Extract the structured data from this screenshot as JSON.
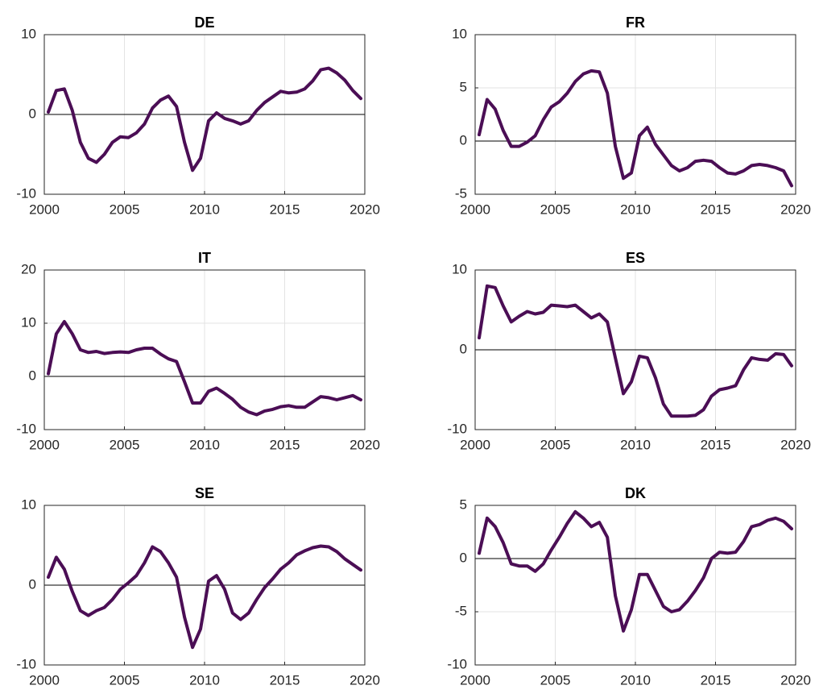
{
  "chart_data": [
    {
      "type": "line",
      "title": "DE",
      "color": "#4b0e55",
      "grid": true,
      "hline": 0,
      "xlim": [
        2000,
        2020
      ],
      "xticks": [
        2000,
        2005,
        2010,
        2015,
        2020
      ],
      "ylim": [
        -10,
        10
      ],
      "yticks": [
        -10,
        0,
        10
      ],
      "x": [
        2000.25,
        2000.75,
        2001.25,
        2001.75,
        2002.25,
        2002.75,
        2003.25,
        2003.75,
        2004.25,
        2004.75,
        2005.25,
        2005.75,
        2006.25,
        2006.75,
        2007.25,
        2007.75,
        2008.25,
        2008.75,
        2009.25,
        2009.75,
        2010.25,
        2010.75,
        2011.25,
        2011.75,
        2012.25,
        2012.75,
        2013.25,
        2013.75,
        2014.25,
        2014.75,
        2015.25,
        2015.75,
        2016.25,
        2016.75,
        2017.25,
        2017.75,
        2018.25,
        2018.75,
        2019.25,
        2019.75
      ],
      "values": [
        0.3,
        3.0,
        3.2,
        0.5,
        -3.5,
        -5.5,
        -6.0,
        -5.0,
        -3.5,
        -2.8,
        -2.9,
        -2.3,
        -1.2,
        0.8,
        1.8,
        2.3,
        1.0,
        -3.5,
        -7.0,
        -5.5,
        -0.8,
        0.2,
        -0.5,
        -0.8,
        -1.2,
        -0.8,
        0.5,
        1.5,
        2.2,
        2.9,
        2.7,
        2.8,
        3.2,
        4.2,
        5.6,
        5.8,
        5.2,
        4.3,
        3.0,
        2.0
      ]
    },
    {
      "type": "line",
      "title": "FR",
      "color": "#4b0e55",
      "grid": true,
      "hline": 0,
      "xlim": [
        2000,
        2020
      ],
      "xticks": [
        2000,
        2005,
        2010,
        2015,
        2020
      ],
      "ylim": [
        -5,
        10
      ],
      "yticks": [
        -5,
        0,
        5,
        10
      ],
      "x": [
        2000.25,
        2000.75,
        2001.25,
        2001.75,
        2002.25,
        2002.75,
        2003.25,
        2003.75,
        2004.25,
        2004.75,
        2005.25,
        2005.75,
        2006.25,
        2006.75,
        2007.25,
        2007.75,
        2008.25,
        2008.75,
        2009.25,
        2009.75,
        2010.25,
        2010.75,
        2011.25,
        2011.75,
        2012.25,
        2012.75,
        2013.25,
        2013.75,
        2014.25,
        2014.75,
        2015.25,
        2015.75,
        2016.25,
        2016.75,
        2017.25,
        2017.75,
        2018.25,
        2018.75,
        2019.25,
        2019.75
      ],
      "values": [
        0.6,
        3.9,
        3.0,
        1.0,
        -0.5,
        -0.5,
        -0.1,
        0.5,
        2.0,
        3.2,
        3.7,
        4.5,
        5.6,
        6.3,
        6.6,
        6.5,
        4.5,
        -0.5,
        -3.5,
        -3.0,
        0.5,
        1.3,
        -0.3,
        -1.3,
        -2.3,
        -2.8,
        -2.5,
        -1.9,
        -1.8,
        -1.9,
        -2.5,
        -3.0,
        -3.1,
        -2.8,
        -2.3,
        -2.2,
        -2.3,
        -2.5,
        -2.8,
        -4.2
      ]
    },
    {
      "type": "line",
      "title": "IT",
      "color": "#4b0e55",
      "grid": true,
      "hline": 0,
      "xlim": [
        2000,
        2020
      ],
      "xticks": [
        2000,
        2005,
        2010,
        2015,
        2020
      ],
      "ylim": [
        -10,
        20
      ],
      "yticks": [
        -10,
        0,
        10,
        20
      ],
      "x": [
        2000.25,
        2000.75,
        2001.25,
        2001.75,
        2002.25,
        2002.75,
        2003.25,
        2003.75,
        2004.25,
        2004.75,
        2005.25,
        2005.75,
        2006.25,
        2006.75,
        2007.25,
        2007.75,
        2008.25,
        2008.75,
        2009.25,
        2009.75,
        2010.25,
        2010.75,
        2011.25,
        2011.75,
        2012.25,
        2012.75,
        2013.25,
        2013.75,
        2014.25,
        2014.75,
        2015.25,
        2015.75,
        2016.25,
        2016.75,
        2017.25,
        2017.75,
        2018.25,
        2018.75,
        2019.25,
        2019.75
      ],
      "values": [
        0.5,
        8,
        10.3,
        8,
        5,
        4.5,
        4.7,
        4.3,
        4.5,
        4.6,
        4.5,
        5.0,
        5.3,
        5.3,
        4.2,
        3.3,
        2.8,
        -1.0,
        -5.0,
        -5.0,
        -2.8,
        -2.2,
        -3.2,
        -4.3,
        -5.8,
        -6.7,
        -7.2,
        -6.5,
        -6.2,
        -5.7,
        -5.5,
        -5.8,
        -5.8,
        -4.8,
        -3.8,
        -4.0,
        -4.4,
        -4.0,
        -3.6,
        -4.4
      ]
    },
    {
      "type": "line",
      "title": "ES",
      "color": "#4b0e55",
      "grid": true,
      "hline": 0,
      "xlim": [
        2000,
        2020
      ],
      "xticks": [
        2000,
        2005,
        2010,
        2015,
        2020
      ],
      "ylim": [
        -10,
        10
      ],
      "yticks": [
        -10,
        0,
        10
      ],
      "x": [
        2000.25,
        2000.75,
        2001.25,
        2001.75,
        2002.25,
        2002.75,
        2003.25,
        2003.75,
        2004.25,
        2004.75,
        2005.25,
        2005.75,
        2006.25,
        2006.75,
        2007.25,
        2007.75,
        2008.25,
        2008.75,
        2009.25,
        2009.75,
        2010.25,
        2010.75,
        2011.25,
        2011.75,
        2012.25,
        2012.75,
        2013.25,
        2013.75,
        2014.25,
        2014.75,
        2015.25,
        2015.75,
        2016.25,
        2016.75,
        2017.25,
        2017.75,
        2018.25,
        2018.75,
        2019.25,
        2019.75
      ],
      "values": [
        1.5,
        8,
        7.8,
        5.5,
        3.5,
        4.2,
        4.8,
        4.5,
        4.7,
        5.6,
        5.5,
        5.4,
        5.6,
        4.8,
        4.0,
        4.5,
        3.5,
        -1.0,
        -5.5,
        -4.0,
        -0.8,
        -1.0,
        -3.5,
        -6.8,
        -8.3,
        -8.3,
        -8.3,
        -8.2,
        -7.5,
        -5.8,
        -5.0,
        -4.8,
        -4.5,
        -2.5,
        -1.0,
        -1.2,
        -1.3,
        -0.5,
        -0.6,
        -2.0
      ]
    },
    {
      "type": "line",
      "title": "SE",
      "color": "#4b0e55",
      "grid": true,
      "hline": 0,
      "xlim": [
        2000,
        2020
      ],
      "xticks": [
        2000,
        2005,
        2010,
        2015,
        2020
      ],
      "ylim": [
        -10,
        10
      ],
      "yticks": [
        -10,
        0,
        10
      ],
      "x": [
        2000.25,
        2000.75,
        2001.25,
        2001.75,
        2002.25,
        2002.75,
        2003.25,
        2003.75,
        2004.25,
        2004.75,
        2005.25,
        2005.75,
        2006.25,
        2006.75,
        2007.25,
        2007.75,
        2008.25,
        2008.75,
        2009.25,
        2009.75,
        2010.25,
        2010.75,
        2011.25,
        2011.75,
        2012.25,
        2012.75,
        2013.25,
        2013.75,
        2014.25,
        2014.75,
        2015.25,
        2015.75,
        2016.25,
        2016.75,
        2017.25,
        2017.75,
        2018.25,
        2018.75,
        2019.25,
        2019.75
      ],
      "values": [
        1,
        3.5,
        2.0,
        -0.8,
        -3.2,
        -3.8,
        -3.2,
        -2.8,
        -1.8,
        -0.5,
        0.3,
        1.2,
        2.8,
        4.8,
        4.2,
        2.8,
        1.0,
        -4.0,
        -7.8,
        -5.5,
        0.5,
        1.2,
        -0.5,
        -3.5,
        -4.3,
        -3.5,
        -1.8,
        -0.3,
        0.8,
        2.0,
        2.8,
        3.8,
        4.3,
        4.7,
        4.9,
        4.8,
        4.2,
        3.3,
        2.6,
        1.9
      ]
    },
    {
      "type": "line",
      "title": "DK",
      "color": "#4b0e55",
      "grid": true,
      "hline": 0,
      "xlim": [
        2000,
        2020
      ],
      "xticks": [
        2000,
        2005,
        2010,
        2015,
        2020
      ],
      "ylim": [
        -10,
        5
      ],
      "yticks": [
        -10,
        -5,
        0,
        5
      ],
      "x": [
        2000.25,
        2000.75,
        2001.25,
        2001.75,
        2002.25,
        2002.75,
        2003.25,
        2003.75,
        2004.25,
        2004.75,
        2005.25,
        2005.75,
        2006.25,
        2006.75,
        2007.25,
        2007.75,
        2008.25,
        2008.75,
        2009.25,
        2009.75,
        2010.25,
        2010.75,
        2011.25,
        2011.75,
        2012.25,
        2012.75,
        2013.25,
        2013.75,
        2014.25,
        2014.75,
        2015.25,
        2015.75,
        2016.25,
        2016.75,
        2017.25,
        2017.75,
        2018.25,
        2018.75,
        2019.25,
        2019.75
      ],
      "values": [
        0.5,
        3.8,
        3.0,
        1.5,
        -0.5,
        -0.7,
        -0.7,
        -1.2,
        -0.5,
        0.8,
        2.0,
        3.3,
        4.4,
        3.8,
        3.0,
        3.4,
        2.0,
        -3.5,
        -6.8,
        -4.8,
        -1.5,
        -1.5,
        -3.0,
        -4.5,
        -5.0,
        -4.8,
        -4.0,
        -3.0,
        -1.8,
        0.0,
        0.6,
        0.5,
        0.6,
        1.6,
        3.0,
        3.2,
        3.6,
        3.8,
        3.5,
        2.8
      ]
    }
  ]
}
